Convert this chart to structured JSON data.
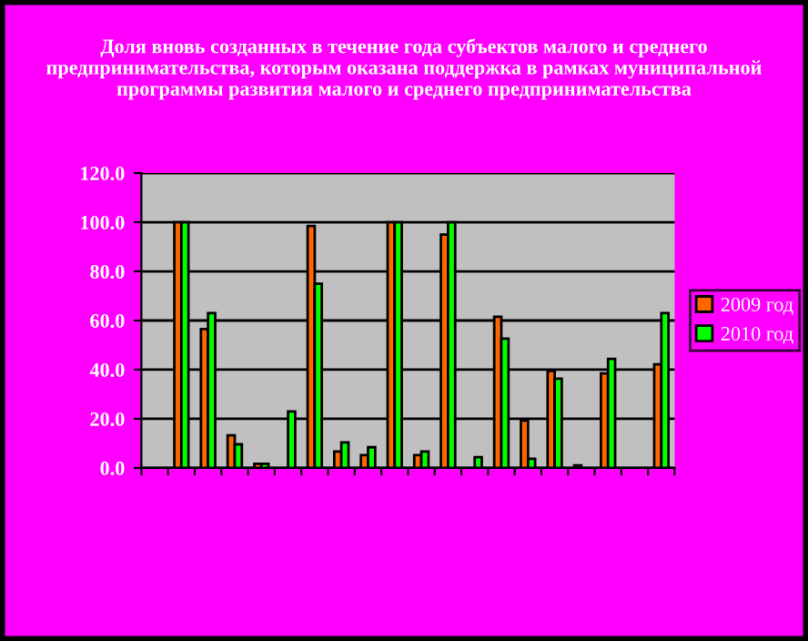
{
  "chart_data": {
    "type": "bar",
    "title": "Доля вновь созданных в течение года субъектов малого и среднего предпринимательства, которым оказана поддержка в рамках муниципальной программы развития малого и среднего предпринимательства",
    "categories": [
      null,
      null,
      null,
      null,
      null,
      null,
      null,
      null,
      null,
      null,
      null,
      null,
      null,
      null,
      null,
      null,
      null,
      null,
      null,
      null
    ],
    "series": [
      {
        "name": "2009 год",
        "color": "#ff6600",
        "values": [
          null,
          100,
          56.5,
          13.3,
          1.7,
          null,
          98.5,
          6.7,
          5.2,
          100,
          5.2,
          95,
          null,
          61.5,
          19.3,
          39.5,
          1,
          38.5,
          null,
          42.2
        ]
      },
      {
        "name": "2010 год",
        "color": "#00ff00",
        "values": [
          null,
          100,
          63,
          9.6,
          1.7,
          23,
          75,
          10.4,
          8.4,
          100,
          6.7,
          100,
          4.4,
          52.6,
          3.7,
          36.3,
          null,
          44.4,
          null,
          63
        ]
      }
    ],
    "ylim": [
      0,
      120
    ],
    "yticks": [
      {
        "value": 0,
        "label": "0.0"
      },
      {
        "value": 20,
        "label": "20.0"
      },
      {
        "value": 40,
        "label": "40.0"
      },
      {
        "value": 60,
        "label": "60.0"
      },
      {
        "value": 80,
        "label": "80.0"
      },
      {
        "value": 100,
        "label": "100.0"
      },
      {
        "value": 120,
        "label": "120.0"
      }
    ],
    "grid": "y",
    "legend": "right"
  }
}
